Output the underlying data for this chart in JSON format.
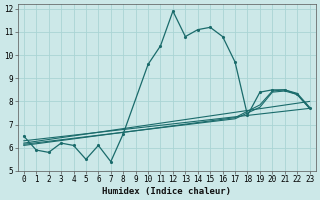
{
  "xlabel": "Humidex (Indice chaleur)",
  "bg_color": "#cce8e8",
  "grid_color": "#aad4d4",
  "line_color": "#1a6b6b",
  "xlim": [
    -0.5,
    23.5
  ],
  "ylim": [
    5,
    12.2
  ],
  "yticks": [
    5,
    6,
    7,
    8,
    9,
    10,
    11,
    12
  ],
  "xticks": [
    0,
    1,
    2,
    3,
    4,
    5,
    6,
    7,
    8,
    9,
    10,
    11,
    12,
    13,
    14,
    15,
    16,
    17,
    18,
    19,
    20,
    21,
    22,
    23
  ],
  "line1_x": [
    0,
    1,
    2,
    3,
    4,
    5,
    6,
    7,
    8,
    10,
    11,
    12,
    13,
    14,
    15,
    16,
    17,
    18,
    19,
    20,
    21,
    22,
    23
  ],
  "line1_y": [
    6.5,
    5.9,
    5.8,
    6.2,
    6.1,
    5.5,
    6.1,
    5.4,
    6.6,
    9.6,
    10.4,
    11.9,
    10.8,
    11.1,
    11.2,
    10.8,
    9.7,
    7.4,
    8.4,
    8.5,
    8.5,
    8.3,
    7.7
  ],
  "line2_x": [
    0,
    23
  ],
  "line2_y": [
    6.3,
    7.7
  ],
  "line3_x": [
    0,
    23
  ],
  "line3_y": [
    6.2,
    8.0
  ],
  "line4_x": [
    0,
    17,
    19,
    20,
    21,
    22,
    23
  ],
  "line4_y": [
    6.1,
    7.3,
    7.85,
    8.45,
    8.5,
    8.35,
    7.75
  ],
  "line5_x": [
    0,
    17,
    19,
    20,
    21,
    22,
    23
  ],
  "line5_y": [
    6.15,
    7.25,
    7.75,
    8.4,
    8.45,
    8.3,
    7.7
  ]
}
